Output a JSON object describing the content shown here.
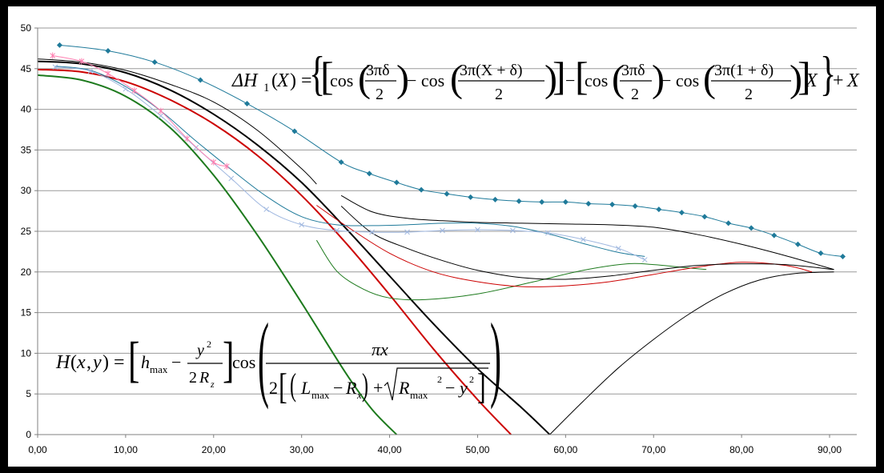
{
  "chart_data": {
    "type": "line",
    "title": "",
    "xlabel": "",
    "ylabel": "",
    "xlim": [
      0,
      92
    ],
    "ylim": [
      0,
      50
    ],
    "x_ticks": [
      "0,00",
      "10,00",
      "20,00",
      "30,00",
      "40,00",
      "50,00",
      "60,00",
      "70,00",
      "80,00",
      "90,00"
    ],
    "x_tick_values": [
      0,
      10,
      20,
      30,
      40,
      50,
      60,
      70,
      80,
      90
    ],
    "y_ticks": [
      "0",
      "5",
      "10",
      "15",
      "20",
      "25",
      "30",
      "35",
      "40",
      "45",
      "50"
    ],
    "y_tick_values": [
      0,
      5,
      10,
      15,
      20,
      25,
      30,
      35,
      40,
      45,
      50
    ],
    "grid": "horizontal",
    "legend": "none",
    "annotations": {
      "equation_delta": "ΔH₁(X) = {[cos(3πδ/2) − cos(3π(X+δ)/2)] − [cos(3πδ/2) − cos(3π(1+δ)/2)]X} + X",
      "equation_h": "H(x,y) = [h_max − y²/(2R_z)] cos( πx / 2[(L_max − R_x) + √(R_max² − y²)] )"
    },
    "series": [
      {
        "color": "#1f7a9a",
        "marker": "diamond",
        "x": [
          2.5,
          8,
          13.3,
          18.5,
          23.8,
          29.2,
          34.5,
          37.7,
          40.8,
          43.6,
          46.5,
          49.2,
          52,
          54.7,
          57.3,
          60,
          62.6,
          65.3,
          67.9,
          70.6,
          73.2,
          75.8,
          78.5,
          81.1,
          83.7,
          86.4,
          89,
          91.5
        ],
        "y": [
          47.9,
          47.2,
          45.8,
          43.6,
          40.7,
          37.3,
          33.5,
          32.1,
          31,
          30.1,
          29.6,
          29.2,
          28.9,
          28.7,
          28.6,
          28.6,
          28.4,
          28.3,
          28.1,
          27.7,
          27.3,
          26.8,
          26,
          25.4,
          24.5,
          23.4,
          22.3,
          21.9
        ]
      },
      {
        "color": "#000000",
        "marker": "none",
        "width": 2,
        "x": [
          0,
          5,
          10,
          15,
          20,
          25,
          30,
          35,
          40,
          45,
          50,
          55,
          58.2
        ],
        "y": [
          45.9,
          45.6,
          44.5,
          42.4,
          39.4,
          35.6,
          31,
          25.4,
          19.5,
          13.6,
          8.1,
          3.3,
          0
        ]
      },
      {
        "color": "#cc0000",
        "marker": "none",
        "width": 2,
        "x": [
          0,
          5,
          10,
          15,
          20,
          25,
          30,
          35,
          40,
          45,
          50,
          53.8
        ],
        "y": [
          44.9,
          44.6,
          43.4,
          41.2,
          38.2,
          34.3,
          29.4,
          23.6,
          17.2,
          10.5,
          4.3,
          0
        ]
      },
      {
        "color": "#1d7a1d",
        "marker": "none",
        "width": 2,
        "x": [
          0,
          5,
          10,
          15,
          20,
          25,
          30,
          35,
          38,
          40.8
        ],
        "y": [
          44.2,
          43.6,
          41.6,
          37.8,
          31.9,
          24.5,
          16.2,
          7.6,
          3.1,
          0
        ]
      },
      {
        "color": "#000000",
        "marker": "none",
        "width": 1,
        "x": [
          0,
          5,
          10,
          15,
          20,
          25,
          30,
          31.7
        ],
        "y": [
          46.2,
          45.8,
          44.8,
          43.1,
          40.9,
          37.4,
          32.7,
          30.8
        ]
      },
      {
        "color": "#1d7a1d",
        "marker": "none",
        "width": 1,
        "x": [
          31.7,
          34,
          37,
          40,
          44,
          50,
          56,
          62,
          67,
          70,
          73,
          76
        ],
        "y": [
          23.9,
          20.1,
          17.9,
          16.8,
          16.6,
          17.3,
          18.7,
          20.2,
          21,
          20.9,
          20.6,
          20.3
        ]
      },
      {
        "color": "#cc0000",
        "marker": "none",
        "width": 1,
        "x": [
          31.7,
          35,
          40,
          45,
          50,
          55,
          60,
          65,
          70,
          75,
          80,
          85,
          88
        ],
        "y": [
          28.2,
          25.7,
          22.3,
          20,
          18.8,
          18.2,
          18.3,
          18.8,
          19.7,
          20.6,
          21.2,
          20.8,
          20
        ]
      },
      {
        "color": "#000000",
        "marker": "none",
        "width": 1,
        "x": [
          34.5,
          38,
          42,
          46,
          50,
          55,
          60,
          65,
          70,
          75,
          80,
          85,
          90.5
        ],
        "y": [
          29.4,
          27.4,
          26.6,
          26.3,
          26.1,
          26,
          25.9,
          25.8,
          25.5,
          24.6,
          23.4,
          22,
          20.3
        ]
      },
      {
        "color": "#000000",
        "marker": "none",
        "width": 1,
        "x": [
          34.5,
          38,
          42,
          46,
          50,
          55,
          60,
          65,
          70,
          75,
          80,
          85,
          90.5
        ],
        "y": [
          28.1,
          24.8,
          22.9,
          21.4,
          20.2,
          19.3,
          19.1,
          19.5,
          20.2,
          20.8,
          21,
          20.9,
          20.3
        ]
      },
      {
        "color": "#1f7a9a",
        "marker": "none",
        "width": 1,
        "x": [
          2,
          6,
          10,
          14,
          18,
          22,
          26,
          30,
          34,
          38,
          42,
          46,
          50,
          54,
          58,
          62,
          66,
          69
        ],
        "y": [
          45.3,
          44.8,
          42.8,
          39.8,
          36.1,
          32.6,
          29.3,
          26.8,
          25.8,
          25.7,
          25.8,
          26,
          26,
          25.6,
          24.7,
          23.5,
          22.4,
          21.9
        ]
      },
      {
        "color": "#a0b8e0",
        "marker": "x",
        "width": 1,
        "x": [
          2,
          6,
          10,
          14,
          18,
          22,
          26,
          30,
          34,
          38,
          42,
          46,
          50,
          54,
          58,
          62,
          66,
          69
        ],
        "y": [
          45.2,
          44.7,
          42.5,
          39.2,
          35.3,
          31.5,
          27.7,
          25.8,
          25.1,
          24.9,
          24.9,
          25.1,
          25.2,
          25.1,
          24.8,
          24,
          22.9,
          21.5
        ]
      },
      {
        "color": "#ff7fb0",
        "marker": "star",
        "width": 1,
        "x": [
          1.7,
          5,
          8,
          11,
          14,
          17,
          20,
          21.5
        ],
        "y": [
          46.6,
          45.9,
          44.4,
          42.3,
          39.8,
          36.4,
          33.5,
          33
        ]
      },
      {
        "color": "#000000",
        "marker": "none",
        "width": 1,
        "x": [
          58.2,
          62,
          66,
          70,
          74,
          78,
          82,
          86,
          90.5
        ],
        "y": [
          0,
          4.1,
          8.2,
          11.7,
          14.8,
          17.3,
          19,
          19.8,
          20
        ]
      }
    ]
  }
}
